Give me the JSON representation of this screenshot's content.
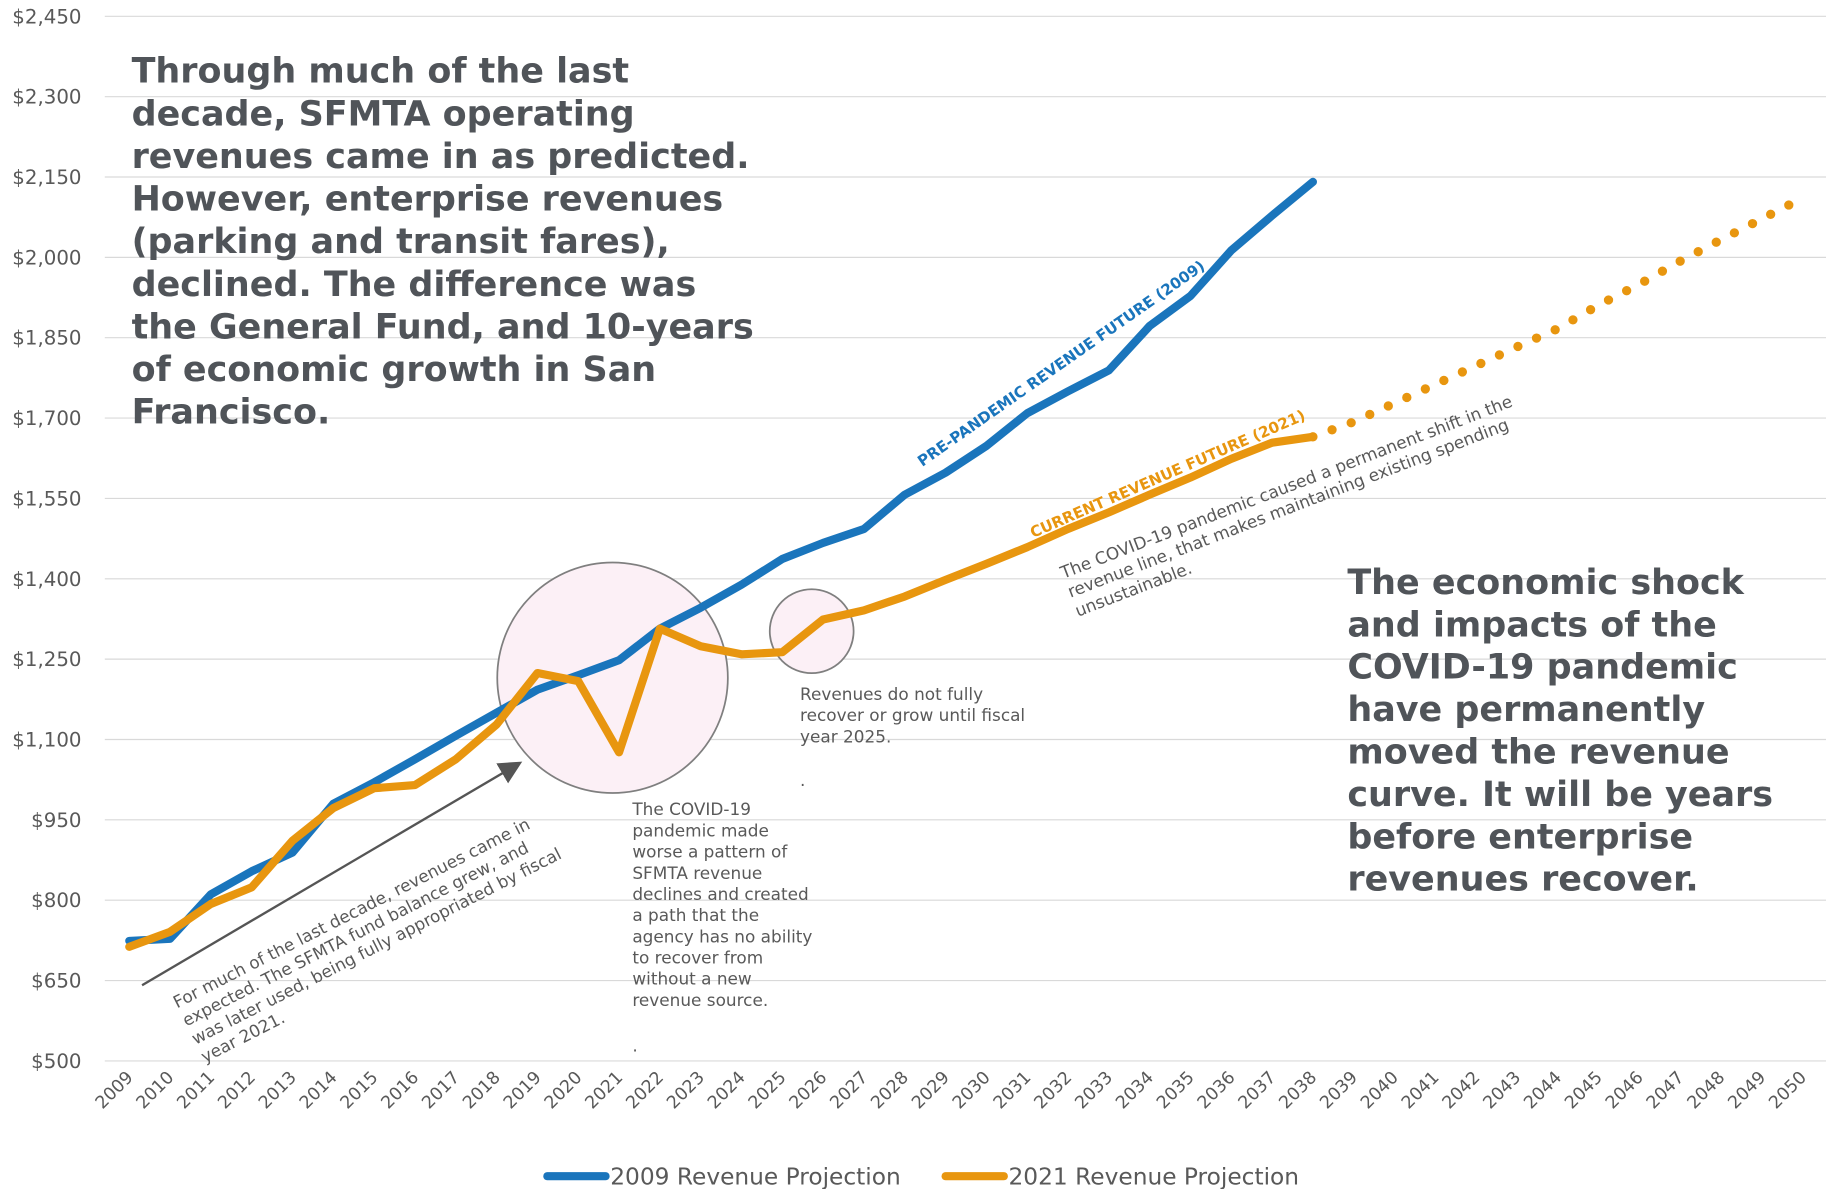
{
  "chart_data": {
    "type": "line",
    "categories": [
      "2009",
      "2010",
      "2011",
      "2012",
      "2013",
      "2014",
      "2015",
      "2016",
      "2017",
      "2018",
      "2019",
      "2020",
      "2021",
      "2022",
      "2023",
      "2024",
      "2025",
      "2026",
      "2027",
      "2028",
      "2029",
      "2030",
      "2031",
      "2032",
      "2033",
      "2034",
      "2035",
      "2036",
      "2037",
      "2038",
      "2039",
      "2040",
      "2041",
      "2042",
      "2043",
      "2044",
      "2045",
      "2046",
      "2047",
      "2048",
      "2049",
      "2050"
    ],
    "series": [
      {
        "name": "2009 Revenue Projection",
        "color": "#1a75bc",
        "values": [
          724,
          728,
          811,
          854,
          889,
          980,
          1020,
          1063,
          1107,
          1150,
          1193,
          1220,
          1248,
          1307,
          1346,
          1389,
          1437,
          1467,
          1493,
          1557,
          1598,
          1648,
          1709,
          1750,
          1789,
          1872,
          1928,
          2013,
          2078,
          2141,
          null,
          null,
          null,
          null,
          null,
          null,
          null,
          null,
          null,
          null,
          null,
          null
        ]
      },
      {
        "name": "2021 Revenue Projection",
        "color": "#e8960f",
        "dotted_from": "2038",
        "values": [
          713,
          741,
          793,
          824,
          911,
          972,
          1009,
          1015,
          1063,
          1128,
          1224,
          1209,
          1076,
          1307,
          1274,
          1259,
          1263,
          1324,
          1341,
          1367,
          1398,
          1428,
          1459,
          1493,
          1524,
          1557,
          1589,
          1624,
          1654,
          1665,
          1693,
          1728,
          1763,
          1798,
          1833,
          1867,
          1911,
          1950,
          1993,
          2033,
          2072,
          2111
        ]
      }
    ],
    "ylim": [
      500,
      2450
    ],
    "yticks": [
      {
        "value": 500,
        "label": "$500"
      },
      {
        "value": 650,
        "label": "$650"
      },
      {
        "value": 800,
        "label": "$800"
      },
      {
        "value": 950,
        "label": "$950"
      },
      {
        "value": 1100,
        "label": "$1,100"
      },
      {
        "value": 1250,
        "label": "$1,250"
      },
      {
        "value": 1400,
        "label": "$1,400"
      },
      {
        "value": 1550,
        "label": "$1,550"
      },
      {
        "value": 1700,
        "label": "$1,700"
      },
      {
        "value": 1850,
        "label": "$1,850"
      },
      {
        "value": 2000,
        "label": "$2,000"
      },
      {
        "value": 2150,
        "label": "$2,150"
      },
      {
        "value": 2300,
        "label": "$2,300"
      },
      {
        "value": 2450,
        "label": "$2,450"
      }
    ],
    "grid": true,
    "legend": "bottom",
    "annotations": {
      "headline": [
        "Through much of the last",
        "decade, SFMTA operating",
        "revenues came in as predicted.",
        "However, enterprise revenues",
        "(parking and transit fares),",
        "declined. The difference was",
        "the General Fund, and 10-years",
        "of economic growth in San",
        "Francisco."
      ],
      "summary": [
        "The economic shock",
        "and impacts of the",
        "COVID-19 pandemic",
        "have permanently",
        "moved the revenue",
        "curve. It will be years",
        "before enterprise",
        "revenues recover."
      ],
      "label_2009": "PRE-PANDEMIC REVENUE FUTURE (2009)",
      "label_2021": "CURRENT REVENUE FUTURE (2021)",
      "note_trend": [
        "For much of the last decade, revenues came in",
        "expected. The SFMTA fund balance grew, and",
        "was later used, being fully appropriated by fiscal",
        "year 2021."
      ],
      "note_covid": [
        "The COVID-19",
        "pandemic made",
        "worse a pattern of",
        "SFMTA revenue",
        "declines and created",
        "a path that the",
        "agency has no ability",
        "to recover from",
        "without a new",
        "revenue source."
      ],
      "note_covid_end": ".",
      "note_recover": [
        "Revenues do not fully",
        "recover or grow until fiscal",
        "year 2025."
      ],
      "note_recover_end": ".",
      "note_shift": [
        "The COVID-19 pandemic caused a permanent shift in the",
        "revenue line, that makes maintaining existing spending",
        "unsustainable."
      ]
    }
  }
}
